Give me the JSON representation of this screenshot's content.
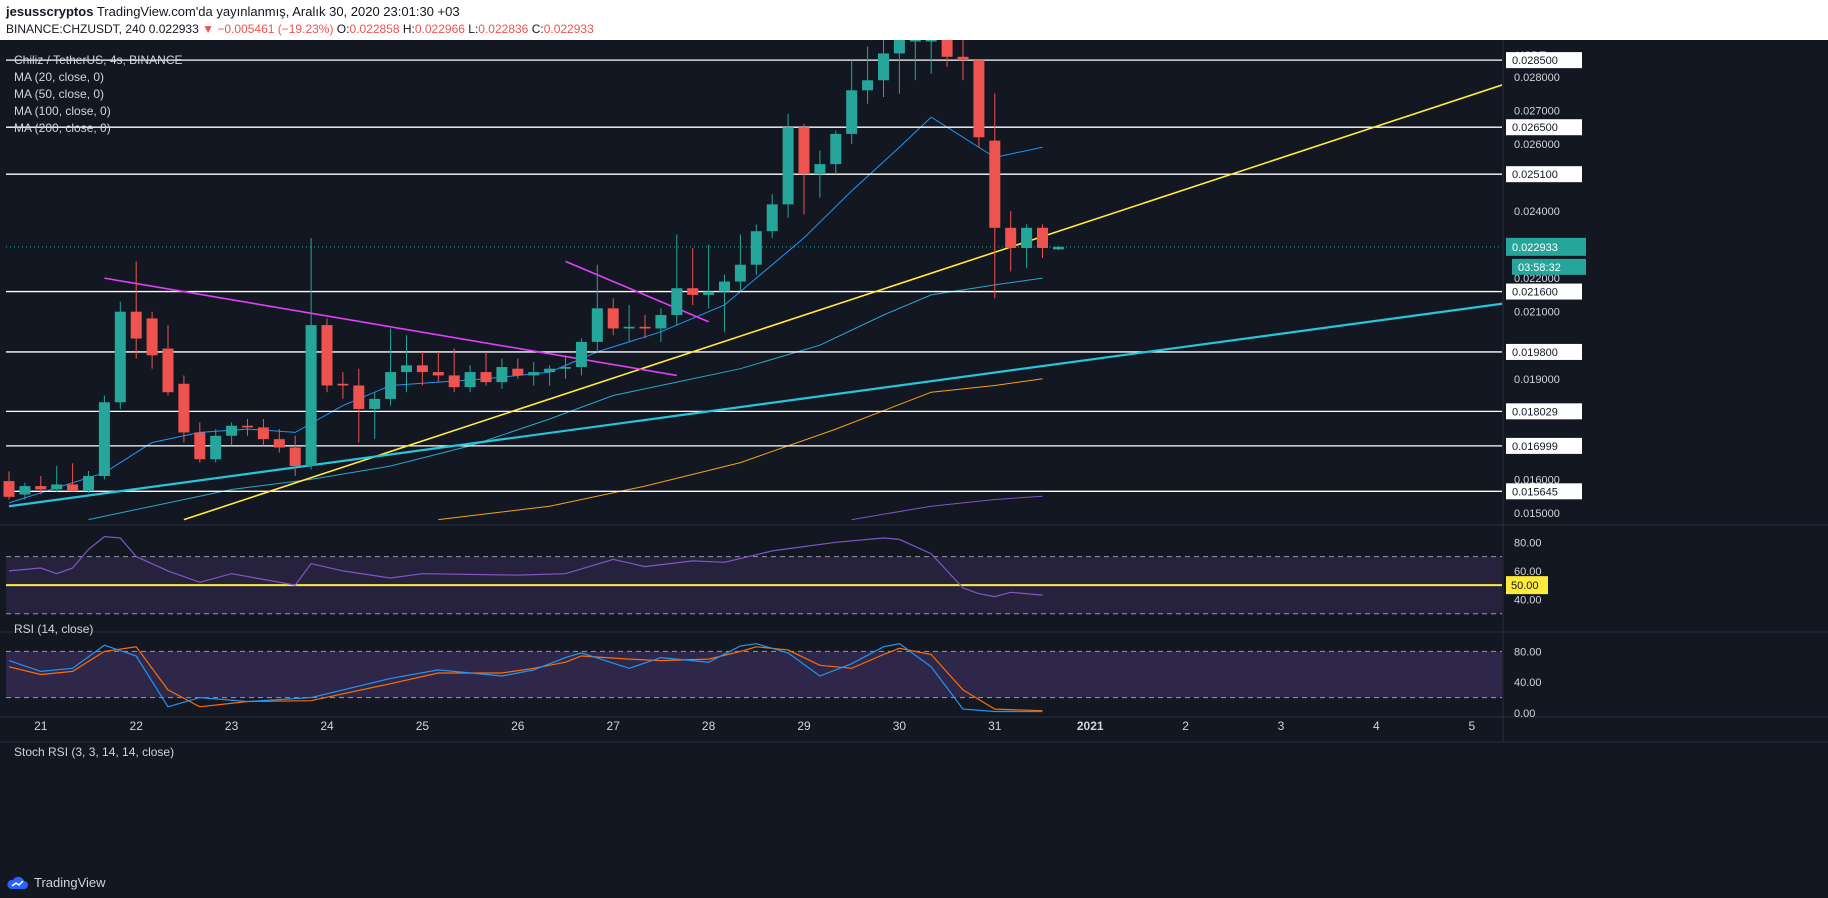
{
  "header": {
    "publisher": "jesusscryptos",
    "published": "TradingView.com'da yayınlanmış, Aralık 30, 2020 23:01:30 +03",
    "symbol": "BINANCE:CHZUSDT, 240",
    "last": "0.022933",
    "change": "−0.005461 (−19.23%)",
    "o_label": "O:",
    "o": "0.022858",
    "h_label": "H:",
    "h": "0.022966",
    "l_label": "L:",
    "l": "0.022836",
    "c_label": "C:",
    "c": "0.022933"
  },
  "legend": {
    "pair": "Chiliz / TetherUS, 4s, BINANCE",
    "ma_lines": [
      "MA (20, close, 0)",
      "MA (50, close, 0)",
      "MA (100, close, 0)",
      "MA (200, close, 0)"
    ]
  },
  "price_axis": {
    "unit": "USDT",
    "ticks": [
      "0.028000",
      "0.027000",
      "0.026000",
      "0.024000",
      "0.022000",
      "0.021000",
      "0.019000",
      "0.016000",
      "0.015000"
    ],
    "current_price": "0.022933",
    "countdown": "03:58:32"
  },
  "hlevels": [
    "0.028500",
    "0.026500",
    "0.025100",
    "0.021600",
    "0.019800",
    "0.018029",
    "0.016999",
    "0.015645"
  ],
  "rsi": {
    "title": "RSI (14, close)",
    "ticks": [
      "80.00",
      "60.00",
      "40.00"
    ],
    "marker": "50.00"
  },
  "stoch": {
    "title": "Stoch RSI (3, 3, 14, 14, close)",
    "ticks": [
      "80.00",
      "40.00",
      "0.00"
    ]
  },
  "time_axis": [
    "21",
    "22",
    "23",
    "24",
    "25",
    "26",
    "27",
    "28",
    "29",
    "30",
    "31",
    "2021",
    "2",
    "3",
    "4",
    "5"
  ],
  "footer": {
    "brand": "TradingView"
  },
  "colors": {
    "up": "#26a69a",
    "down": "#ef5350",
    "yellow_trend": "#ffeb3b",
    "cyan_trend": "#26c6da",
    "magenta_trend": "#e040fb",
    "ma20": "#2196f3",
    "ma50": "#29a8c8",
    "ma100": "#f7a21b",
    "ma200": "#7e57c2"
  },
  "chart_data": {
    "type": "candlestick",
    "symbol": "BINANCE:CHZUSDT",
    "timeframe": "240",
    "x_start_date": "2020-12-20 16:00",
    "ylim": [
      0.0147,
      0.0291
    ],
    "candles": [
      {
        "o": 0.01595,
        "h": 0.01624,
        "l": 0.0154,
        "c": 0.01548
      },
      {
        "o": 0.01555,
        "h": 0.0159,
        "l": 0.0154,
        "c": 0.0158
      },
      {
        "o": 0.0158,
        "h": 0.0161,
        "l": 0.01555,
        "c": 0.0157
      },
      {
        "o": 0.0157,
        "h": 0.0164,
        "l": 0.01562,
        "c": 0.01585
      },
      {
        "o": 0.01585,
        "h": 0.01648,
        "l": 0.01565,
        "c": 0.01565
      },
      {
        "o": 0.01565,
        "h": 0.01625,
        "l": 0.0156,
        "c": 0.0161
      },
      {
        "o": 0.0161,
        "h": 0.0185,
        "l": 0.016,
        "c": 0.0183
      },
      {
        "o": 0.0183,
        "h": 0.0213,
        "l": 0.0181,
        "c": 0.021
      },
      {
        "o": 0.021,
        "h": 0.0225,
        "l": 0.0196,
        "c": 0.0202
      },
      {
        "o": 0.0208,
        "h": 0.021,
        "l": 0.0193,
        "c": 0.0197
      },
      {
        "o": 0.0199,
        "h": 0.0206,
        "l": 0.0185,
        "c": 0.0186
      },
      {
        "o": 0.01885,
        "h": 0.0191,
        "l": 0.0171,
        "c": 0.0174
      },
      {
        "o": 0.0174,
        "h": 0.0177,
        "l": 0.0165,
        "c": 0.0166
      },
      {
        "o": 0.0166,
        "h": 0.0175,
        "l": 0.0165,
        "c": 0.0173
      },
      {
        "o": 0.0173,
        "h": 0.0177,
        "l": 0.017,
        "c": 0.0176
      },
      {
        "o": 0.0176,
        "h": 0.0178,
        "l": 0.0173,
        "c": 0.01755
      },
      {
        "o": 0.01755,
        "h": 0.0178,
        "l": 0.017,
        "c": 0.0172
      },
      {
        "o": 0.0172,
        "h": 0.0175,
        "l": 0.0168,
        "c": 0.01695
      },
      {
        "o": 0.01695,
        "h": 0.0173,
        "l": 0.0161,
        "c": 0.0164
      },
      {
        "o": 0.0164,
        "h": 0.0232,
        "l": 0.0163,
        "c": 0.0206
      },
      {
        "o": 0.0206,
        "h": 0.0208,
        "l": 0.0186,
        "c": 0.0188
      },
      {
        "o": 0.01885,
        "h": 0.0192,
        "l": 0.0184,
        "c": 0.0188
      },
      {
        "o": 0.0188,
        "h": 0.0193,
        "l": 0.0171,
        "c": 0.0181
      },
      {
        "o": 0.0181,
        "h": 0.0186,
        "l": 0.0172,
        "c": 0.0184
      },
      {
        "o": 0.0184,
        "h": 0.0205,
        "l": 0.0182,
        "c": 0.0192
      },
      {
        "o": 0.0192,
        "h": 0.0203,
        "l": 0.0186,
        "c": 0.0194
      },
      {
        "o": 0.0194,
        "h": 0.0198,
        "l": 0.0188,
        "c": 0.0192
      },
      {
        "o": 0.0192,
        "h": 0.0198,
        "l": 0.0189,
        "c": 0.0191
      },
      {
        "o": 0.0191,
        "h": 0.0199,
        "l": 0.0186,
        "c": 0.01875
      },
      {
        "o": 0.01875,
        "h": 0.0194,
        "l": 0.0186,
        "c": 0.0192
      },
      {
        "o": 0.0192,
        "h": 0.0198,
        "l": 0.0188,
        "c": 0.0189
      },
      {
        "o": 0.0189,
        "h": 0.0196,
        "l": 0.0187,
        "c": 0.01935
      },
      {
        "o": 0.0193,
        "h": 0.0196,
        "l": 0.019,
        "c": 0.0191
      },
      {
        "o": 0.0191,
        "h": 0.0195,
        "l": 0.0188,
        "c": 0.0192
      },
      {
        "o": 0.0192,
        "h": 0.0194,
        "l": 0.0188,
        "c": 0.0193
      },
      {
        "o": 0.0193,
        "h": 0.0197,
        "l": 0.019,
        "c": 0.01935
      },
      {
        "o": 0.01935,
        "h": 0.0202,
        "l": 0.0191,
        "c": 0.0201
      },
      {
        "o": 0.0201,
        "h": 0.0224,
        "l": 0.0198,
        "c": 0.0211
      },
      {
        "o": 0.0211,
        "h": 0.0214,
        "l": 0.0203,
        "c": 0.0205
      },
      {
        "o": 0.0205,
        "h": 0.0212,
        "l": 0.0201,
        "c": 0.02055
      },
      {
        "o": 0.02055,
        "h": 0.0209,
        "l": 0.0202,
        "c": 0.0205
      },
      {
        "o": 0.0205,
        "h": 0.0211,
        "l": 0.0201,
        "c": 0.0209
      },
      {
        "o": 0.0209,
        "h": 0.0233,
        "l": 0.0206,
        "c": 0.0217
      },
      {
        "o": 0.0217,
        "h": 0.0229,
        "l": 0.0212,
        "c": 0.0215
      },
      {
        "o": 0.0215,
        "h": 0.023,
        "l": 0.0211,
        "c": 0.0216
      },
      {
        "o": 0.0216,
        "h": 0.0221,
        "l": 0.0204,
        "c": 0.0219
      },
      {
        "o": 0.0219,
        "h": 0.0233,
        "l": 0.0216,
        "c": 0.0224
      },
      {
        "o": 0.0224,
        "h": 0.0236,
        "l": 0.0221,
        "c": 0.0234
      },
      {
        "o": 0.0234,
        "h": 0.0245,
        "l": 0.0232,
        "c": 0.0242
      },
      {
        "o": 0.0242,
        "h": 0.0269,
        "l": 0.0238,
        "c": 0.0265
      },
      {
        "o": 0.0265,
        "h": 0.0266,
        "l": 0.0239,
        "c": 0.0251
      },
      {
        "o": 0.0251,
        "h": 0.0258,
        "l": 0.0244,
        "c": 0.0254
      },
      {
        "o": 0.0254,
        "h": 0.0264,
        "l": 0.0251,
        "c": 0.0263
      },
      {
        "o": 0.0263,
        "h": 0.0285,
        "l": 0.026,
        "c": 0.0276
      },
      {
        "o": 0.0276,
        "h": 0.0289,
        "l": 0.0272,
        "c": 0.0279
      },
      {
        "o": 0.0279,
        "h": 0.0291,
        "l": 0.0274,
        "c": 0.0287
      },
      {
        "o": 0.0287,
        "h": 0.0291,
        "l": 0.0275,
        "c": 0.0291
      },
      {
        "o": 0.0291,
        "h": 0.0291,
        "l": 0.0279,
        "c": 0.0291
      },
      {
        "o": 0.0291,
        "h": 0.0291,
        "l": 0.0281,
        "c": 0.0291
      },
      {
        "o": 0.0291,
        "h": 0.0291,
        "l": 0.0283,
        "c": 0.0286
      },
      {
        "o": 0.0286,
        "h": 0.0291,
        "l": 0.0279,
        "c": 0.0285
      },
      {
        "o": 0.0285,
        "h": 0.0285,
        "l": 0.0259,
        "c": 0.0262
      },
      {
        "o": 0.0261,
        "h": 0.0275,
        "l": 0.0214,
        "c": 0.0235
      },
      {
        "o": 0.0235,
        "h": 0.024,
        "l": 0.0222,
        "c": 0.0229
      },
      {
        "o": 0.0229,
        "h": 0.0236,
        "l": 0.0223,
        "c": 0.0235
      },
      {
        "o": 0.0235,
        "h": 0.0236,
        "l": 0.0226,
        "c": 0.0229
      },
      {
        "o": 0.022858,
        "h": 0.022966,
        "l": 0.022836,
        "c": 0.022933
      }
    ],
    "ma20": [
      [
        0,
        0.0153
      ],
      [
        6,
        0.0162
      ],
      [
        9,
        0.0171
      ],
      [
        12,
        0.0174
      ],
      [
        15,
        0.0175
      ],
      [
        18,
        0.0174
      ],
      [
        21,
        0.0182
      ],
      [
        24,
        0.0188
      ],
      [
        30,
        0.019
      ],
      [
        34,
        0.0192
      ],
      [
        37,
        0.0198
      ],
      [
        41,
        0.0204
      ],
      [
        45,
        0.0212
      ],
      [
        47,
        0.022
      ],
      [
        50,
        0.0232
      ],
      [
        53,
        0.0246
      ],
      [
        56,
        0.0259
      ],
      [
        58,
        0.0268
      ],
      [
        62,
        0.0256
      ],
      [
        63,
        0.0257
      ],
      [
        65,
        0.0259
      ]
    ],
    "ma50": [
      [
        5,
        0.0148
      ],
      [
        9,
        0.0152
      ],
      [
        14,
        0.0157
      ],
      [
        19,
        0.016
      ],
      [
        24,
        0.0164
      ],
      [
        29,
        0.017
      ],
      [
        34,
        0.0178
      ],
      [
        38,
        0.0185
      ],
      [
        42,
        0.0189
      ],
      [
        46,
        0.0193
      ],
      [
        51,
        0.02
      ],
      [
        55,
        0.0209
      ],
      [
        58,
        0.0215
      ],
      [
        62,
        0.0218
      ],
      [
        65,
        0.022
      ]
    ],
    "ma100": [
      [
        27,
        0.0148
      ],
      [
        34,
        0.0152
      ],
      [
        40,
        0.0158
      ],
      [
        46,
        0.0165
      ],
      [
        52,
        0.0175
      ],
      [
        58,
        0.0186
      ],
      [
        62,
        0.0188
      ],
      [
        65,
        0.019
      ]
    ],
    "ma200": [
      [
        53,
        0.0148
      ],
      [
        58,
        0.0152
      ],
      [
        62,
        0.0154
      ],
      [
        65,
        0.0155
      ]
    ],
    "trendlines": [
      {
        "name": "yellow",
        "from": [
          11,
          0.0148
        ],
        "to": [
          98,
          0.0284
        ]
      },
      {
        "name": "cyan",
        "from": [
          0,
          0.0152
        ],
        "to": [
          98,
          0.0215
        ]
      },
      {
        "name": "magenta",
        "from": [
          6,
          0.022
        ],
        "to": [
          42,
          0.0191
        ]
      },
      {
        "name": "magenta-short",
        "from": [
          35,
          0.0225
        ],
        "to": [
          44,
          0.0207
        ]
      }
    ],
    "rsi": [
      [
        0,
        60
      ],
      [
        2,
        62
      ],
      [
        3,
        58
      ],
      [
        4,
        62
      ],
      [
        5,
        75
      ],
      [
        6,
        84
      ],
      [
        7,
        83
      ],
      [
        8,
        70
      ],
      [
        10,
        60
      ],
      [
        12,
        52
      ],
      [
        14,
        58
      ],
      [
        18,
        50
      ],
      [
        19,
        65
      ],
      [
        21,
        60
      ],
      [
        24,
        55
      ],
      [
        26,
        58
      ],
      [
        32,
        57
      ],
      [
        35,
        58
      ],
      [
        38,
        68
      ],
      [
        40,
        63
      ],
      [
        43,
        67
      ],
      [
        45,
        66
      ],
      [
        48,
        74
      ],
      [
        52,
        80
      ],
      [
        55,
        83
      ],
      [
        56,
        82
      ],
      [
        58,
        72
      ],
      [
        60,
        48
      ],
      [
        61,
        44
      ],
      [
        62,
        42
      ],
      [
        63,
        45
      ],
      [
        65,
        43
      ]
    ],
    "stoch_k": [
      [
        0,
        68
      ],
      [
        2,
        54
      ],
      [
        4,
        58
      ],
      [
        6,
        88
      ],
      [
        8,
        74
      ],
      [
        10,
        8
      ],
      [
        12,
        20
      ],
      [
        15,
        15
      ],
      [
        19,
        20
      ],
      [
        21,
        30
      ],
      [
        24,
        45
      ],
      [
        27,
        56
      ],
      [
        31,
        48
      ],
      [
        33,
        56
      ],
      [
        35,
        72
      ],
      [
        36,
        78
      ],
      [
        39,
        58
      ],
      [
        41,
        72
      ],
      [
        44,
        66
      ],
      [
        46,
        87
      ],
      [
        47,
        90
      ],
      [
        49,
        78
      ],
      [
        51,
        48
      ],
      [
        53,
        64
      ],
      [
        55,
        86
      ],
      [
        56,
        90
      ],
      [
        58,
        60
      ],
      [
        60,
        5
      ],
      [
        62,
        2
      ],
      [
        65,
        2
      ]
    ],
    "stoch_d": [
      [
        0,
        60
      ],
      [
        2,
        50
      ],
      [
        4,
        54
      ],
      [
        6,
        80
      ],
      [
        8,
        86
      ],
      [
        10,
        30
      ],
      [
        12,
        8
      ],
      [
        15,
        15
      ],
      [
        19,
        16
      ],
      [
        21,
        25
      ],
      [
        24,
        38
      ],
      [
        27,
        52
      ],
      [
        31,
        52
      ],
      [
        33,
        58
      ],
      [
        35,
        66
      ],
      [
        36,
        74
      ],
      [
        39,
        70
      ],
      [
        41,
        68
      ],
      [
        44,
        70
      ],
      [
        46,
        80
      ],
      [
        47,
        86
      ],
      [
        49,
        82
      ],
      [
        51,
        62
      ],
      [
        53,
        58
      ],
      [
        55,
        76
      ],
      [
        56,
        84
      ],
      [
        58,
        76
      ],
      [
        60,
        30
      ],
      [
        62,
        5
      ],
      [
        65,
        3
      ]
    ]
  }
}
